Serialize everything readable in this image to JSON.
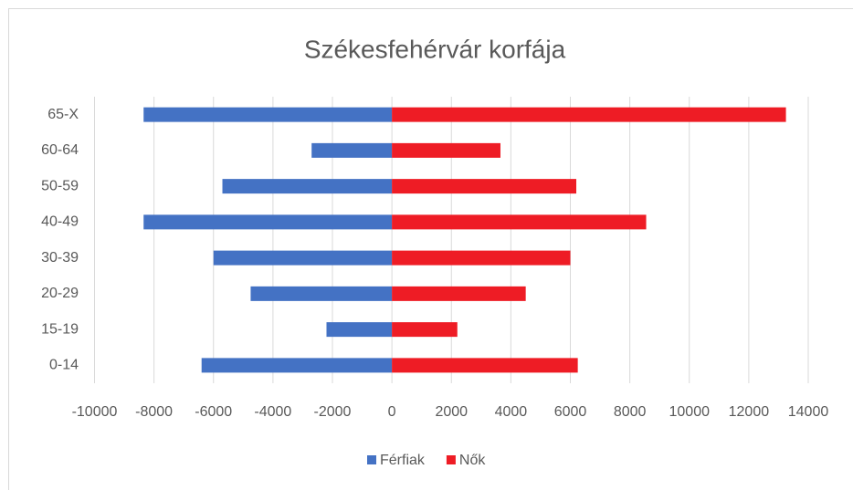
{
  "chart_data": {
    "type": "bar",
    "orientation": "horizontal",
    "title": "Székesfehérvár korfája",
    "categories": [
      "0-14",
      "15-19",
      "20-29",
      "30-39",
      "40-49",
      "50-59",
      "60-64",
      "65-X"
    ],
    "series": [
      {
        "name": "Férfiak",
        "color": "#4472c4",
        "values": [
          -6400,
          -2200,
          -4750,
          -6000,
          -8350,
          -5700,
          -2700,
          -8350
        ]
      },
      {
        "name": "Nők",
        "color": "#ee1c25",
        "values": [
          6250,
          2200,
          4500,
          6000,
          8550,
          6200,
          3650,
          13250
        ]
      }
    ],
    "xlim": [
      -10000,
      14000
    ],
    "xticks": [
      -10000,
      -8000,
      -6000,
      -4000,
      -2000,
      0,
      2000,
      4000,
      6000,
      8000,
      10000,
      12000,
      14000
    ],
    "grid": true,
    "legend": "bottom"
  }
}
